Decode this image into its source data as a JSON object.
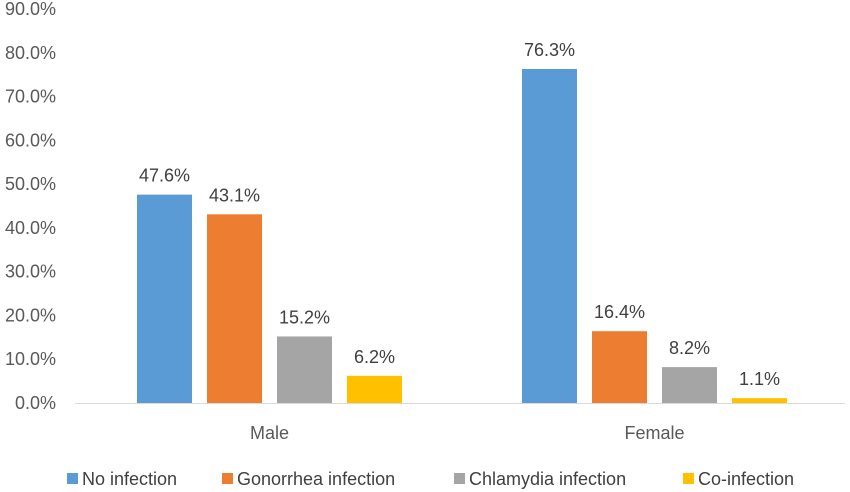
{
  "chart_data": {
    "type": "bar",
    "title": "",
    "xlabel": "",
    "ylabel": "",
    "categories": [
      "Male",
      "Female"
    ],
    "series": [
      {
        "name": "No infection",
        "values": [
          47.6,
          76.3
        ],
        "color": "#5B9BD5"
      },
      {
        "name": "Gonorrhea infection",
        "values": [
          43.1,
          16.4
        ],
        "color": "#ED7D31"
      },
      {
        "name": "Chlamydia infection",
        "values": [
          15.2,
          8.2
        ],
        "color": "#A5A5A5"
      },
      {
        "name": "Co-infection",
        "values": [
          6.2,
          1.1
        ],
        "color": "#FFC000"
      }
    ],
    "value_labels": [
      [
        "47.6%",
        "76.3%"
      ],
      [
        "43.1%",
        "16.4%"
      ],
      [
        "15.2%",
        "8.2%"
      ],
      [
        "6.2%",
        "1.1%"
      ]
    ],
    "y_ticks": [
      "0.0%",
      "10.0%",
      "20.0%",
      "30.0%",
      "40.0%",
      "50.0%",
      "60.0%",
      "70.0%",
      "80.0%",
      "90.0%"
    ],
    "ylim": [
      0,
      90
    ],
    "grid": false,
    "legend_position": "bottom",
    "axis_color": "#D9D9D9"
  }
}
